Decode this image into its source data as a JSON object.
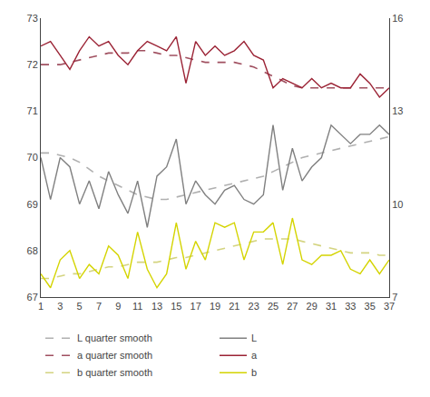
{
  "chart_data": {
    "type": "line",
    "x": [
      1,
      2,
      3,
      4,
      5,
      6,
      7,
      8,
      9,
      10,
      11,
      12,
      13,
      14,
      15,
      16,
      17,
      18,
      19,
      20,
      21,
      22,
      23,
      24,
      25,
      26,
      27,
      28,
      29,
      30,
      31,
      32,
      33,
      34,
      35,
      36,
      37
    ],
    "series": [
      {
        "name": "L quarter smooth",
        "color": "#b0b0b0",
        "line_style": "dashed",
        "values": [
          70.1,
          70.1,
          70.05,
          70.0,
          69.9,
          69.75,
          69.6,
          69.5,
          69.4,
          69.3,
          69.2,
          69.15,
          69.1,
          69.1,
          69.15,
          69.2,
          69.25,
          69.3,
          69.35,
          69.4,
          69.45,
          69.5,
          69.55,
          69.6,
          69.7,
          69.8,
          69.9,
          70.0,
          70.05,
          70.1,
          70.15,
          70.2,
          70.25,
          70.3,
          70.35,
          70.4,
          70.45
        ]
      },
      {
        "name": "a quarter smooth",
        "color": "#a05060",
        "line_style": "dashed",
        "values": [
          72.0,
          72.0,
          72.0,
          72.05,
          72.1,
          72.15,
          72.2,
          72.25,
          72.25,
          72.25,
          72.3,
          72.3,
          72.25,
          72.2,
          72.2,
          72.15,
          72.1,
          72.05,
          72.05,
          72.05,
          72.05,
          72.0,
          71.95,
          71.85,
          71.75,
          71.65,
          71.55,
          71.5,
          71.5,
          71.5,
          71.5,
          71.5,
          71.5,
          71.5,
          71.5,
          71.5,
          71.5
        ]
      },
      {
        "name": "b quarter smooth",
        "color": "#d4d480",
        "line_style": "dashed",
        "values": [
          67.4,
          67.4,
          67.45,
          67.5,
          67.5,
          67.55,
          67.6,
          67.65,
          67.65,
          67.7,
          67.75,
          67.75,
          67.75,
          67.8,
          67.85,
          67.85,
          67.9,
          67.95,
          68.0,
          68.05,
          68.1,
          68.15,
          68.2,
          68.25,
          68.25,
          68.25,
          68.25,
          68.2,
          68.15,
          68.1,
          68.05,
          68.0,
          67.95,
          67.95,
          67.95,
          67.9,
          67.9
        ]
      },
      {
        "name": "L",
        "color": "#808080",
        "line_style": "solid",
        "values": [
          70.0,
          69.1,
          70.0,
          69.8,
          69.0,
          69.5,
          68.9,
          69.7,
          69.2,
          68.8,
          69.5,
          68.5,
          69.6,
          69.8,
          70.4,
          69.0,
          69.5,
          69.2,
          69.0,
          69.3,
          69.4,
          69.1,
          69.0,
          69.2,
          70.7,
          69.3,
          70.2,
          69.5,
          69.8,
          70.0,
          70.7,
          70.5,
          70.3,
          70.5,
          70.5,
          70.7,
          70.5
        ]
      },
      {
        "name": "a",
        "color": "#9b2335",
        "line_style": "solid",
        "values": [
          72.4,
          72.5,
          72.2,
          71.9,
          72.3,
          72.6,
          72.4,
          72.5,
          72.2,
          72.0,
          72.3,
          72.5,
          72.4,
          72.3,
          72.6,
          71.6,
          72.5,
          72.2,
          72.4,
          72.2,
          72.3,
          72.5,
          72.2,
          72.1,
          71.5,
          71.7,
          71.6,
          71.5,
          71.7,
          71.5,
          71.6,
          71.5,
          71.5,
          71.8,
          71.6,
          71.3,
          71.5
        ]
      },
      {
        "name": "b",
        "color": "#d4d400",
        "line_style": "solid",
        "values": [
          67.5,
          67.2,
          67.8,
          68.0,
          67.4,
          67.7,
          67.5,
          68.1,
          67.9,
          67.4,
          68.4,
          67.6,
          67.2,
          67.5,
          68.6,
          67.6,
          68.2,
          67.8,
          68.6,
          68.5,
          68.6,
          67.8,
          68.4,
          68.4,
          68.6,
          67.7,
          68.7,
          67.8,
          67.7,
          67.9,
          67.9,
          68.0,
          67.6,
          67.5,
          67.8,
          67.5,
          67.8
        ]
      }
    ],
    "xlim": [
      1,
      37
    ],
    "xticks": [
      1,
      3,
      5,
      7,
      9,
      11,
      13,
      15,
      17,
      19,
      21,
      23,
      25,
      27,
      29,
      31,
      33,
      35,
      37
    ],
    "ylim": [
      67,
      73
    ],
    "yticks": [
      67,
      68,
      69,
      70,
      71,
      72,
      73
    ],
    "y2lim": [
      7,
      16
    ],
    "y2ticks": [
      7,
      10,
      13,
      16
    ],
    "grid": false,
    "legend": "bottom"
  }
}
